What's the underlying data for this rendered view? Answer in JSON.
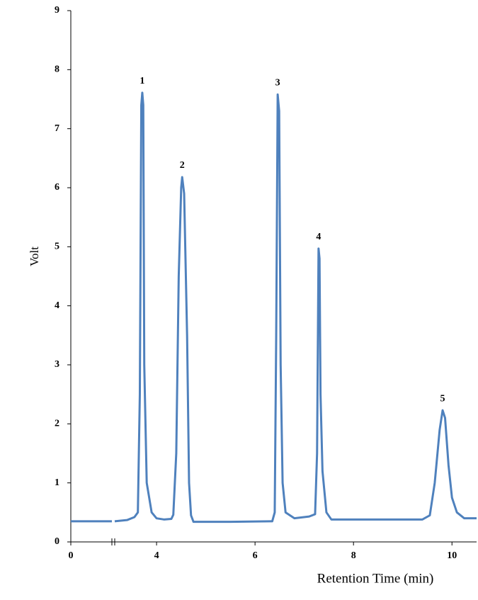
{
  "chart_data": {
    "type": "line",
    "xlabel": "Retention Time (min)",
    "ylabel": "Volt",
    "xlim": [
      0,
      10.5
    ],
    "ylim": [
      0,
      9
    ],
    "xticks": [
      0,
      4,
      6,
      8,
      10
    ],
    "yticks": [
      0,
      1,
      2,
      3,
      4,
      5,
      6,
      7,
      8,
      9
    ],
    "xbreak": [
      0.9,
      3.15
    ],
    "series": [
      {
        "color": "#4f81bd",
        "x": [
          0,
          0.9,
          3.15,
          3.4,
          3.55,
          3.62,
          3.66,
          3.69,
          3.71,
          3.73,
          3.75,
          3.8,
          3.9,
          4.0,
          4.15,
          4.3,
          4.34,
          4.4,
          4.45,
          4.5,
          4.52,
          4.56,
          4.62,
          4.66,
          4.7,
          4.75,
          5.5,
          6.35,
          6.4,
          6.43,
          6.46,
          6.49,
          6.52,
          6.56,
          6.62,
          6.8,
          7.1,
          7.22,
          7.26,
          7.29,
          7.31,
          7.33,
          7.37,
          7.45,
          7.55,
          8.5,
          9.4,
          9.55,
          9.65,
          9.75,
          9.81,
          9.86,
          9.93,
          10.0,
          10.1,
          10.25,
          10.5
        ],
        "values": [
          0.35,
          0.35,
          0.35,
          0.37,
          0.42,
          0.5,
          2.5,
          7.4,
          7.61,
          7.4,
          3.0,
          1.0,
          0.5,
          0.4,
          0.38,
          0.39,
          0.46,
          1.5,
          4.5,
          6.0,
          6.18,
          5.9,
          3.5,
          1.0,
          0.45,
          0.34,
          0.34,
          0.35,
          0.5,
          3.5,
          7.58,
          7.3,
          3.0,
          1.0,
          0.5,
          0.4,
          0.43,
          0.47,
          1.5,
          4.97,
          4.8,
          2.5,
          1.2,
          0.5,
          0.38,
          0.38,
          0.38,
          0.45,
          1.0,
          1.9,
          2.23,
          2.1,
          1.3,
          0.75,
          0.5,
          0.4,
          0.4
        ]
      }
    ],
    "annotations": [
      {
        "text": "1",
        "x": 3.71,
        "y": 7.61
      },
      {
        "text": "2",
        "x": 4.52,
        "y": 6.18
      },
      {
        "text": "3",
        "x": 6.46,
        "y": 7.58
      },
      {
        "text": "4",
        "x": 7.29,
        "y": 4.97
      },
      {
        "text": "5",
        "x": 9.81,
        "y": 2.23
      }
    ]
  }
}
